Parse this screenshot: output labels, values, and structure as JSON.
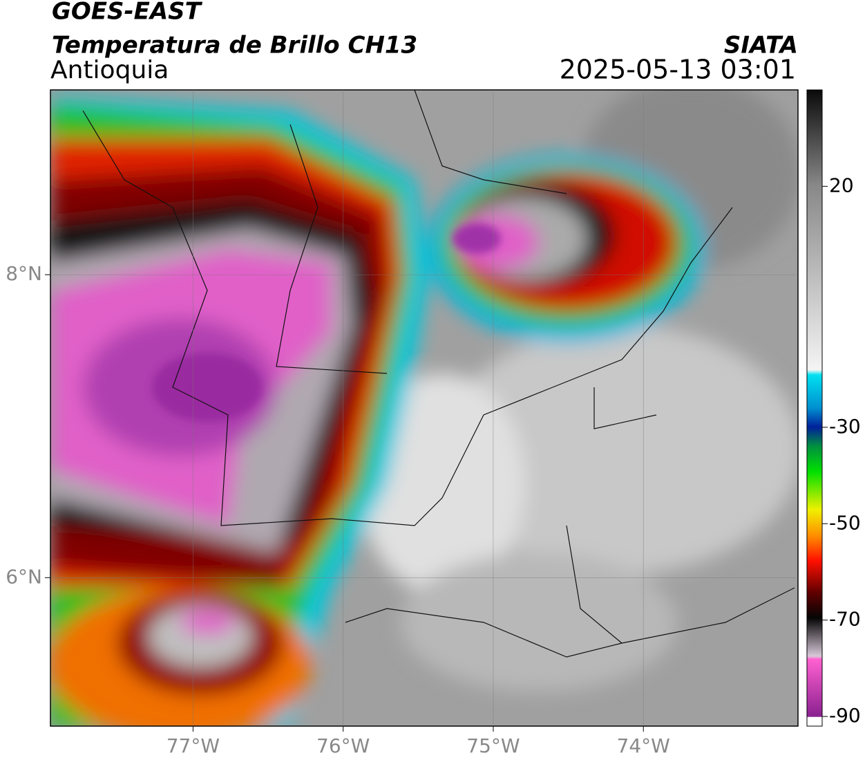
{
  "header": {
    "title": "GOES-EAST",
    "subtitle": "Temperatura de Brillo CH13",
    "region": "Antioquia",
    "source": "SIATA",
    "datetime": "2025-05-13 03:01"
  },
  "map": {
    "xlim": [
      -77.95,
      -72.97
    ],
    "ylim": [
      5.02,
      9.22
    ],
    "xticks": [
      {
        "value": -77,
        "label": "77°W"
      },
      {
        "value": -76,
        "label": "76°W"
      },
      {
        "value": -75,
        "label": "75°W"
      },
      {
        "value": -74,
        "label": "74°W"
      }
    ],
    "yticks": [
      {
        "value": 8,
        "label": "8°N"
      },
      {
        "value": 6,
        "label": "6°N"
      }
    ],
    "grid": true
  },
  "colorbar": {
    "ylim": [
      -92,
      40
    ],
    "yticks": [
      20,
      -30,
      -50,
      -70,
      -90
    ]
  }
}
